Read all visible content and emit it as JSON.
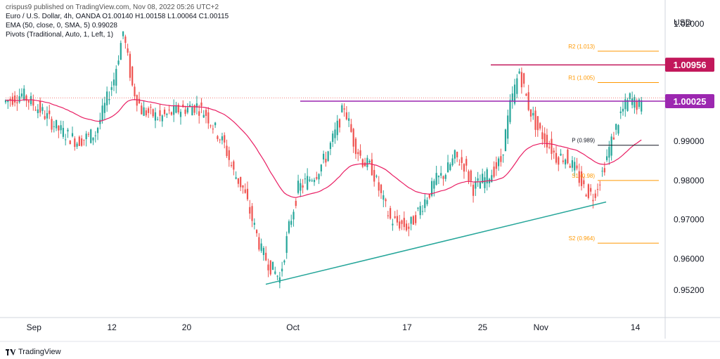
{
  "header": {
    "published": "crispus9 published on TradingView.com, Nov 08, 2022 05:26 UTC+2",
    "symbol_line": "Euro / U.S. Dollar, 4h, OANDA  O1.00140 H1.00158 L1.00064 C1.00115",
    "ema_line": "EMA (50, close, 0, SMA, 5)  0.99028",
    "pivots_line": "Pivots (Traditional, Auto, 1, Left, 1)"
  },
  "footer": {
    "brand": "TradingView"
  },
  "colors": {
    "up": "#26a69a",
    "down": "#ef5350",
    "ema": "#e91e63",
    "pivot": "#ff9800",
    "resistance": "#9c27b0",
    "high_line": "#c2185b",
    "trendline": "#26a69a",
    "pp_line": "#131722"
  },
  "chart_data": {
    "type": "candlestick",
    "currency": "USD",
    "ylim": [
      0.945,
      1.025
    ],
    "y_ticks": [
      "1.02000",
      "0.99000",
      "0.98000",
      "0.97000",
      "0.96000",
      "0.95200"
    ],
    "x_ticks": [
      "Sep",
      "12",
      "20",
      "Oct",
      "17",
      "25",
      "Nov",
      "14"
    ],
    "price_labels": [
      {
        "label": "1.00956",
        "value": 1.00956
      },
      {
        "label": "1.00025",
        "value": 1.00025
      }
    ],
    "pivots": [
      {
        "label": "R2 (1.013)",
        "value": 1.013
      },
      {
        "label": "R1 (1.005)",
        "value": 1.005
      },
      {
        "label": "P (0.989)",
        "value": 0.989
      },
      {
        "label": "S1 (0.98)",
        "value": 0.98
      },
      {
        "label": "S2 (0.964)",
        "value": 0.964
      }
    ],
    "horizontal_lines": [
      {
        "name": "resistance",
        "value": 1.00025
      },
      {
        "name": "recent-high",
        "value": 1.0095
      }
    ],
    "trendline": {
      "start": [
        "Sep 28",
        0.9535
      ],
      "end": [
        "Nov 07",
        0.9745
      ]
    },
    "close_path": [
      [
        0,
        1.0
      ],
      [
        2,
        1.002
      ],
      [
        4,
        0.998
      ],
      [
        6,
        0.993
      ],
      [
        8,
        0.99
      ],
      [
        10,
        0.992
      ],
      [
        12,
        1.006
      ],
      [
        13,
        1.018
      ],
      [
        14,
        1.004
      ],
      [
        15,
        0.998
      ],
      [
        17,
        0.996
      ],
      [
        19,
        0.998
      ],
      [
        21,
        0.999
      ],
      [
        22,
        0.997
      ],
      [
        24,
        0.989
      ],
      [
        25,
        0.982
      ],
      [
        26,
        0.978
      ],
      [
        27,
        0.97
      ],
      [
        28,
        0.962
      ],
      [
        29,
        0.958
      ],
      [
        30,
        0.955
      ],
      [
        31,
        0.968
      ],
      [
        32,
        0.978
      ],
      [
        33,
        0.98
      ],
      [
        34,
        0.982
      ],
      [
        35,
        0.986
      ],
      [
        36,
        0.992
      ],
      [
        37,
        0.999
      ],
      [
        38,
        0.99
      ],
      [
        39,
        0.985
      ],
      [
        40,
        0.983
      ],
      [
        41,
        0.976
      ],
      [
        42,
        0.97
      ],
      [
        43,
        0.969
      ],
      [
        44,
        0.968
      ],
      [
        45,
        0.972
      ],
      [
        46,
        0.976
      ],
      [
        47,
        0.98
      ],
      [
        48,
        0.982
      ],
      [
        49,
        0.986
      ],
      [
        50,
        0.984
      ],
      [
        51,
        0.978
      ],
      [
        52,
        0.98
      ],
      [
        53,
        0.982
      ],
      [
        54,
        0.985
      ],
      [
        55,
        0.999
      ],
      [
        56,
        1.008
      ],
      [
        57,
        0.999
      ],
      [
        58,
        0.993
      ],
      [
        59,
        0.99
      ],
      [
        60,
        0.986
      ],
      [
        61,
        0.986
      ],
      [
        62,
        0.983
      ],
      [
        63,
        0.978
      ],
      [
        64,
        0.976
      ],
      [
        65,
        0.982
      ],
      [
        66,
        0.99
      ],
      [
        67,
        0.997
      ],
      [
        68,
        1.001
      ],
      [
        69,
        0.999
      ]
    ],
    "x_start_date": "Aug 31",
    "x_end_date": "Nov 16"
  }
}
